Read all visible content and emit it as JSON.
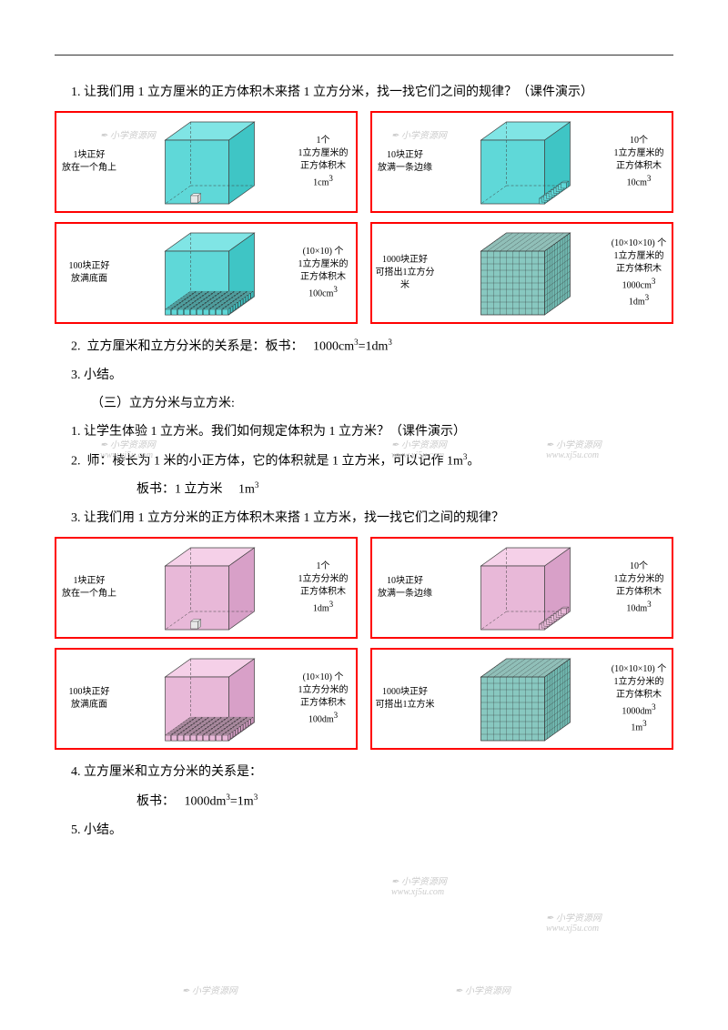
{
  "colors": {
    "panel_border": "#ff0000",
    "cyan_light": "#80e5e5",
    "cyan_mid": "#5fd8d8",
    "cyan_dark": "#3fc5c5",
    "pink_light": "#f5d0e8",
    "pink_mid": "#e8b8d8",
    "pink_dark": "#d8a0c8",
    "teal_light": "#a0d8d0",
    "teal_mid": "#88c8c0",
    "teal_dark": "#70b8b0",
    "line": "#404040",
    "text": "#000000",
    "watermark": "#cccccc"
  },
  "text": {
    "q1": "1.  让我们用 1 立方厘米的正方体积木来搭 1 立方分米，找一找它们之间的规律？（课件演示）",
    "q2": "2.  立方厘米和立方分米的关系是：板书：   1000cm³=1dm³",
    "q3": "3.  小结。",
    "section3": "（三）立方分米与立方米:",
    "s3_1": "1.  让学生体验 1 立方米。我们如何规定体积为 1 立方米？（课件演示）",
    "s3_2": "2.  师：棱长为 1 米的小正方体，它的体积就是 1 立方米，可以记作 1m³。",
    "s3_2b": "板书：1 立方米     1m³",
    "s3_3": "3.  让我们用 1 立方分米的正方体积木来搭 1 立方米，找一找它们之间的规律？",
    "s3_4": "4.  立方厘米和立方分米的关系是：",
    "s3_4b": "板书：   1000dm³=1m³",
    "s3_5": "5.  小结。"
  },
  "panels_cyan": [
    {
      "left": "1块正好\n放在一个角上",
      "right": "1个\n1立方厘米的\n正方体积木\n1cm³",
      "mode": "single"
    },
    {
      "left": "10块正好\n放满一条边缘",
      "right": "10个\n1立方厘米的\n正方体积木\n10cm³",
      "mode": "row"
    },
    {
      "left": "100块正好\n放满底面",
      "right": "(10×10) 个\n1立方厘米的\n正方体积木\n100cm³",
      "mode": "layer"
    },
    {
      "left": "1000块正好\n可搭出1立方分米",
      "right": "(10×10×10) 个\n1立方厘米的\n正方体积木\n1000cm³\n1dm³",
      "mode": "full"
    }
  ],
  "panels_pink": [
    {
      "left": "1块正好\n放在一个角上",
      "right": "1个\n1立方分米的\n正方体积木\n1dm³",
      "mode": "single"
    },
    {
      "left": "10块正好\n放满一条边缘",
      "right": "10个\n1立方分米的\n正方体积木\n10dm³",
      "mode": "row"
    },
    {
      "left": "100块正好\n放满底面",
      "right": "(10×10) 个\n1立方分米的\n正方体积木\n100dm³",
      "mode": "layer"
    },
    {
      "left": "1000块正好\n可搭出1立方米",
      "right": "(10×10×10) 个\n1立方分米的\n正方体积木\n1000dm³\n1m³",
      "mode": "full"
    }
  ],
  "watermark_text": "小学资源网",
  "watermark_url": "www.xj5u.com"
}
